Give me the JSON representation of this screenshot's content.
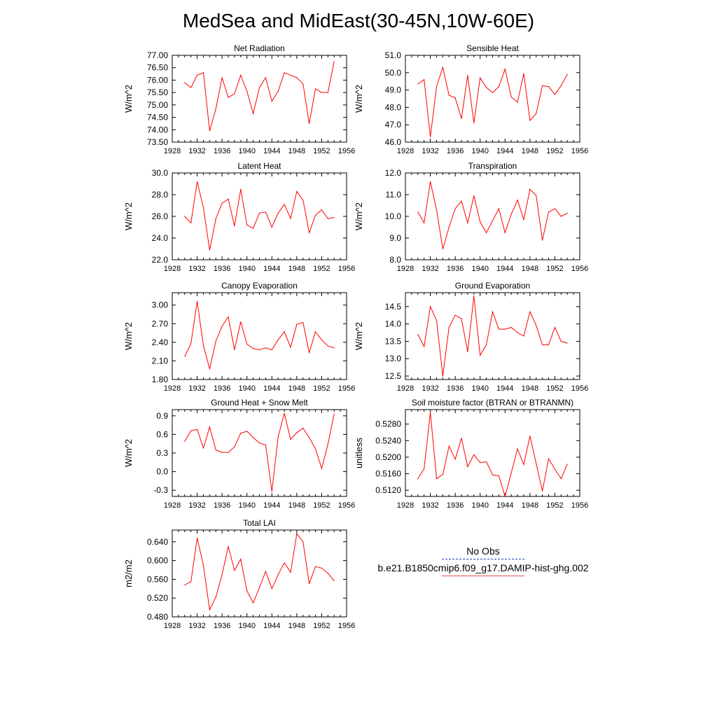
{
  "title": "MedSea and MidEast(30-45N,10W-60E)",
  "series_color": "#ff0000",
  "obs_color": "#1f3fbf",
  "legend": {
    "obs_label": "No Obs",
    "model_label": "b.e21.B1850cmip6.f09_g17.DAMIP-hist-ghg.002"
  },
  "chart_data": [
    {
      "type": "line",
      "title": "Net Radiation",
      "ylabel": "W/m^2",
      "xlim": [
        1928,
        1956
      ],
      "ylim": [
        73.5,
        77.0
      ],
      "xticks": [
        "1928",
        "1932",
        "1936",
        "1940",
        "1944",
        "1948",
        "1952",
        "1956"
      ],
      "yticks": [
        "73.50",
        "74.00",
        "74.50",
        "75.00",
        "75.50",
        "76.00",
        "76.50",
        "77.00"
      ],
      "x": [
        1930,
        1931,
        1932,
        1933,
        1934,
        1935,
        1936,
        1937,
        1938,
        1939,
        1940,
        1941,
        1942,
        1943,
        1944,
        1945,
        1946,
        1947,
        1948,
        1949,
        1950,
        1951,
        1952,
        1953,
        1954
      ],
      "values": [
        75.9,
        75.7,
        76.2,
        76.3,
        73.95,
        74.85,
        76.1,
        75.3,
        75.45,
        76.2,
        75.55,
        74.65,
        75.7,
        76.1,
        75.15,
        75.55,
        76.3,
        76.2,
        76.1,
        75.85,
        74.25,
        75.65,
        75.5,
        75.5,
        76.75
      ]
    },
    {
      "type": "line",
      "title": "Sensible Heat",
      "ylabel": "W/m^2",
      "xlim": [
        1928,
        1956
      ],
      "ylim": [
        46.0,
        51.0
      ],
      "xticks": [
        "1928",
        "1932",
        "1936",
        "1940",
        "1944",
        "1948",
        "1952",
        "1956"
      ],
      "yticks": [
        "46.0",
        "47.0",
        "48.0",
        "49.0",
        "50.0",
        "51.0"
      ],
      "x": [
        1930,
        1931,
        1932,
        1933,
        1934,
        1935,
        1936,
        1937,
        1938,
        1939,
        1940,
        1941,
        1942,
        1943,
        1944,
        1945,
        1946,
        1947,
        1948,
        1949,
        1950,
        1951,
        1952,
        1953,
        1954
      ],
      "values": [
        49.35,
        49.6,
        46.3,
        49.2,
        50.3,
        48.7,
        48.55,
        47.35,
        49.85,
        47.1,
        49.7,
        49.15,
        48.85,
        49.2,
        50.2,
        48.6,
        48.3,
        49.95,
        47.25,
        47.65,
        49.25,
        49.2,
        48.75,
        49.25,
        49.9
      ]
    },
    {
      "type": "line",
      "title": "Latent Heat",
      "ylabel": "W/m^2",
      "xlim": [
        1928,
        1956
      ],
      "ylim": [
        22.0,
        30.0
      ],
      "xticks": [
        "1928",
        "1932",
        "1936",
        "1940",
        "1944",
        "1948",
        "1952",
        "1956"
      ],
      "yticks": [
        "22.0",
        "24.0",
        "26.0",
        "28.0",
        "30.0"
      ],
      "x": [
        1930,
        1931,
        1932,
        1933,
        1934,
        1935,
        1936,
        1937,
        1938,
        1939,
        1940,
        1941,
        1942,
        1943,
        1944,
        1945,
        1946,
        1947,
        1948,
        1949,
        1950,
        1951,
        1952,
        1953,
        1954
      ],
      "values": [
        26.0,
        25.4,
        29.2,
        26.8,
        22.9,
        25.8,
        27.2,
        27.6,
        25.1,
        28.5,
        25.2,
        24.9,
        26.3,
        26.4,
        25.0,
        26.3,
        27.1,
        25.8,
        28.3,
        27.5,
        24.5,
        26.1,
        26.6,
        25.8,
        25.9
      ]
    },
    {
      "type": "line",
      "title": "Transpiration",
      "ylabel": "W/m^2",
      "xlim": [
        1928,
        1956
      ],
      "ylim": [
        8.0,
        12.0
      ],
      "xticks": [
        "1928",
        "1932",
        "1936",
        "1940",
        "1944",
        "1948",
        "1952",
        "1956"
      ],
      "yticks": [
        "8.0",
        "9.0",
        "10.0",
        "11.0",
        "12.0"
      ],
      "x": [
        1930,
        1931,
        1932,
        1933,
        1934,
        1935,
        1936,
        1937,
        1938,
        1939,
        1940,
        1941,
        1942,
        1943,
        1944,
        1945,
        1946,
        1947,
        1948,
        1949,
        1950,
        1951,
        1952,
        1953,
        1954
      ],
      "values": [
        10.2,
        9.7,
        11.6,
        10.3,
        8.5,
        9.5,
        10.35,
        10.7,
        9.7,
        10.95,
        9.75,
        9.25,
        9.8,
        10.35,
        9.25,
        10.1,
        10.75,
        9.85,
        11.25,
        10.95,
        8.9,
        10.2,
        10.35,
        10.0,
        10.15
      ]
    },
    {
      "type": "line",
      "title": "Canopy Evaporation",
      "ylabel": "W/m^2",
      "xlim": [
        1928,
        1956
      ],
      "ylim": [
        1.8,
        3.2
      ],
      "xticks": [
        "1928",
        "1932",
        "1936",
        "1940",
        "1944",
        "1948",
        "1952",
        "1956"
      ],
      "yticks": [
        "1.80",
        "2.10",
        "2.40",
        "2.70",
        "3.00"
      ],
      "x": [
        1930,
        1931,
        1932,
        1933,
        1934,
        1935,
        1936,
        1937,
        1938,
        1939,
        1940,
        1941,
        1942,
        1943,
        1944,
        1945,
        1946,
        1947,
        1948,
        1949,
        1950,
        1951,
        1952,
        1953,
        1954
      ],
      "values": [
        2.17,
        2.38,
        3.06,
        2.35,
        1.97,
        2.42,
        2.66,
        2.81,
        2.28,
        2.73,
        2.37,
        2.3,
        2.28,
        2.31,
        2.28,
        2.44,
        2.57,
        2.32,
        2.69,
        2.72,
        2.23,
        2.57,
        2.44,
        2.34,
        2.31
      ]
    },
    {
      "type": "line",
      "title": "Ground Evaporation",
      "ylabel": "W/m^2",
      "xlim": [
        1928,
        1956
      ],
      "ylim": [
        12.4,
        14.9
      ],
      "xticks": [
        "1928",
        "1932",
        "1936",
        "1940",
        "1944",
        "1948",
        "1952",
        "1956"
      ],
      "yticks": [
        "12.5",
        "13.0",
        "13.5",
        "14.0",
        "14.5"
      ],
      "x": [
        1930,
        1931,
        1932,
        1933,
        1934,
        1935,
        1936,
        1937,
        1938,
        1939,
        1940,
        1941,
        1942,
        1943,
        1944,
        1945,
        1946,
        1947,
        1948,
        1949,
        1950,
        1951,
        1952,
        1953,
        1954
      ],
      "values": [
        13.7,
        13.35,
        14.5,
        14.1,
        12.5,
        13.9,
        14.25,
        14.15,
        13.2,
        14.8,
        13.1,
        13.4,
        14.35,
        13.85,
        13.85,
        13.9,
        13.75,
        13.65,
        14.35,
        13.95,
        13.4,
        13.4,
        13.9,
        13.5,
        13.45
      ]
    },
    {
      "type": "line",
      "title": "Ground Heat + Snow Melt",
      "ylabel": "W/m^2",
      "xlim": [
        1928,
        1956
      ],
      "ylim": [
        -0.4,
        1.0
      ],
      "xticks": [
        "1928",
        "1932",
        "1936",
        "1940",
        "1944",
        "1948",
        "1952",
        "1956"
      ],
      "yticks": [
        "-0.3",
        "0.0",
        "0.3",
        "0.6",
        "0.9"
      ],
      "x": [
        1930,
        1931,
        1932,
        1933,
        1934,
        1935,
        1936,
        1937,
        1938,
        1939,
        1940,
        1941,
        1942,
        1943,
        1944,
        1945,
        1946,
        1947,
        1948,
        1949,
        1950,
        1951,
        1952,
        1953,
        1954
      ],
      "values": [
        0.49,
        0.66,
        0.68,
        0.38,
        0.72,
        0.35,
        0.31,
        0.31,
        0.4,
        0.62,
        0.65,
        0.55,
        0.46,
        0.43,
        -0.32,
        0.56,
        0.94,
        0.52,
        0.63,
        0.7,
        0.55,
        0.37,
        0.05,
        0.44,
        0.93
      ]
    },
    {
      "type": "line",
      "title": "Soil moisture factor (BTRAN or BTRANMN)",
      "ylabel": "unitless",
      "xlim": [
        1928,
        1956
      ],
      "ylim": [
        0.5105,
        0.5315
      ],
      "xticks": [
        "1928",
        "1932",
        "1936",
        "1940",
        "1944",
        "1948",
        "1952",
        "1956"
      ],
      "yticks": [
        "0.5120",
        "0.5160",
        "0.5200",
        "0.5240",
        "0.5280"
      ],
      "x": [
        1930,
        1931,
        1932,
        1933,
        1934,
        1935,
        1936,
        1937,
        1938,
        1939,
        1940,
        1941,
        1942,
        1943,
        1944,
        1945,
        1946,
        1947,
        1948,
        1949,
        1950,
        1951,
        1952,
        1953,
        1954
      ],
      "values": [
        0.5148,
        0.5172,
        0.5308,
        0.5148,
        0.5158,
        0.5227,
        0.5195,
        0.5246,
        0.5177,
        0.5206,
        0.5187,
        0.5189,
        0.5157,
        0.5155,
        0.5105,
        0.5162,
        0.522,
        0.5182,
        0.5251,
        0.5184,
        0.5118,
        0.5196,
        0.5171,
        0.5148,
        0.5183
      ]
    },
    {
      "type": "line",
      "title": "Total LAI",
      "ylabel": "m2/m2",
      "xlim": [
        1928,
        1956
      ],
      "ylim": [
        0.48,
        0.665
      ],
      "xticks": [
        "1928",
        "1932",
        "1936",
        "1940",
        "1944",
        "1948",
        "1952",
        "1956"
      ],
      "yticks": [
        "0.480",
        "0.520",
        "0.560",
        "0.600",
        "0.640"
      ],
      "x": [
        1930,
        1931,
        1932,
        1933,
        1934,
        1935,
        1936,
        1937,
        1938,
        1939,
        1940,
        1941,
        1942,
        1943,
        1944,
        1945,
        1946,
        1947,
        1948,
        1949,
        1950,
        1951,
        1952,
        1953,
        1954
      ],
      "values": [
        0.548,
        0.555,
        0.648,
        0.59,
        0.495,
        0.522,
        0.57,
        0.63,
        0.579,
        0.603,
        0.535,
        0.51,
        0.542,
        0.577,
        0.54,
        0.57,
        0.595,
        0.575,
        0.657,
        0.64,
        0.551,
        0.587,
        0.584,
        0.573,
        0.557
      ]
    }
  ]
}
